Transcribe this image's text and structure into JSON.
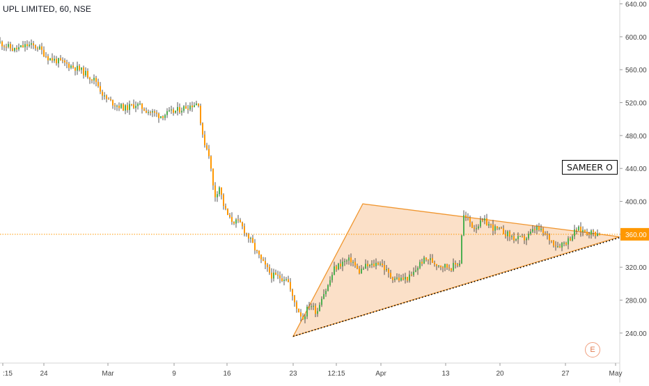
{
  "header": {
    "title": "UPL LIMITED, 60, NSE"
  },
  "annotation": {
    "label": "SAMEER O"
  },
  "badge": {
    "label": "E"
  },
  "colors": {
    "up": "#4caf50",
    "down": "#ff9800",
    "wick": "#2b2b2b",
    "triangle_fill": "#f7c79a",
    "triangle_stroke": "#f0962f",
    "dotted": "#000000",
    "price_line": "#ff9800",
    "axis_text": "#444444"
  },
  "chart_data": {
    "type": "candlestick",
    "title": "UPL LIMITED, 60, NSE",
    "interval": "60",
    "exchange": "NSE",
    "ylim": [
      212,
      643
    ],
    "y_ticks": [
      240,
      280,
      320,
      360,
      400,
      440,
      480,
      520,
      560,
      600,
      640
    ],
    "y_tick_labels": [
      "240.00",
      "280.00",
      "320.00",
      "360.00",
      "400.00",
      "440.00",
      "480.00",
      "520.00",
      "560.00",
      "600.00",
      "640.00"
    ],
    "current_price": {
      "value": 360,
      "label": "360.00"
    },
    "x_ticks": [
      ":15",
      "24",
      "Mar",
      "9",
      "16",
      "23",
      "12:15",
      "Apr",
      "13",
      "20",
      "27",
      "May"
    ],
    "grid": false,
    "price_path": [
      [
        0,
        593
      ],
      [
        20,
        584
      ],
      [
        40,
        590
      ],
      [
        55,
        587
      ],
      [
        70,
        574
      ],
      [
        95,
        567
      ],
      [
        115,
        560
      ],
      [
        138,
        546
      ],
      [
        150,
        526
      ],
      [
        165,
        518
      ],
      [
        180,
        513
      ],
      [
        195,
        518
      ],
      [
        212,
        510
      ],
      [
        230,
        504
      ],
      [
        250,
        509
      ],
      [
        268,
        515
      ],
      [
        285,
        520
      ],
      [
        290,
        480
      ],
      [
        300,
        458
      ],
      [
        308,
        405
      ],
      [
        315,
        418
      ],
      [
        322,
        392
      ],
      [
        330,
        378
      ],
      [
        345,
        373
      ],
      [
        360,
        352
      ],
      [
        375,
        328
      ],
      [
        390,
        310
      ],
      [
        405,
        307
      ],
      [
        412,
        308
      ],
      [
        420,
        283
      ],
      [
        428,
        268
      ],
      [
        435,
        258
      ],
      [
        445,
        276
      ],
      [
        455,
        265
      ],
      [
        462,
        285
      ],
      [
        470,
        295
      ],
      [
        480,
        318
      ],
      [
        492,
        326
      ],
      [
        505,
        329
      ],
      [
        515,
        314
      ],
      [
        525,
        321
      ],
      [
        535,
        322
      ],
      [
        545,
        327
      ],
      [
        560,
        309
      ],
      [
        575,
        305
      ],
      [
        590,
        308
      ],
      [
        605,
        327
      ],
      [
        615,
        330
      ],
      [
        625,
        325
      ],
      [
        635,
        322
      ],
      [
        648,
        320
      ],
      [
        660,
        326
      ],
      [
        665,
        383
      ],
      [
        672,
        378
      ],
      [
        680,
        368
      ],
      [
        695,
        376
      ],
      [
        710,
        367
      ],
      [
        725,
        362
      ],
      [
        740,
        354
      ],
      [
        755,
        355
      ],
      [
        770,
        368
      ],
      [
        785,
        358
      ],
      [
        800,
        346
      ],
      [
        815,
        352
      ],
      [
        828,
        366
      ],
      [
        840,
        364
      ],
      [
        850,
        362
      ],
      [
        862,
        361
      ]
    ],
    "triangle": {
      "vertices": [
        {
          "date": "23",
          "price": 236
        },
        {
          "date": "12:15",
          "price": 397
        },
        {
          "date": "May",
          "price": 357
        }
      ]
    },
    "support_line": {
      "from": {
        "date": "23",
        "price": 236
      },
      "to": {
        "date": "May",
        "price": 356
      },
      "style": "dotted"
    }
  }
}
